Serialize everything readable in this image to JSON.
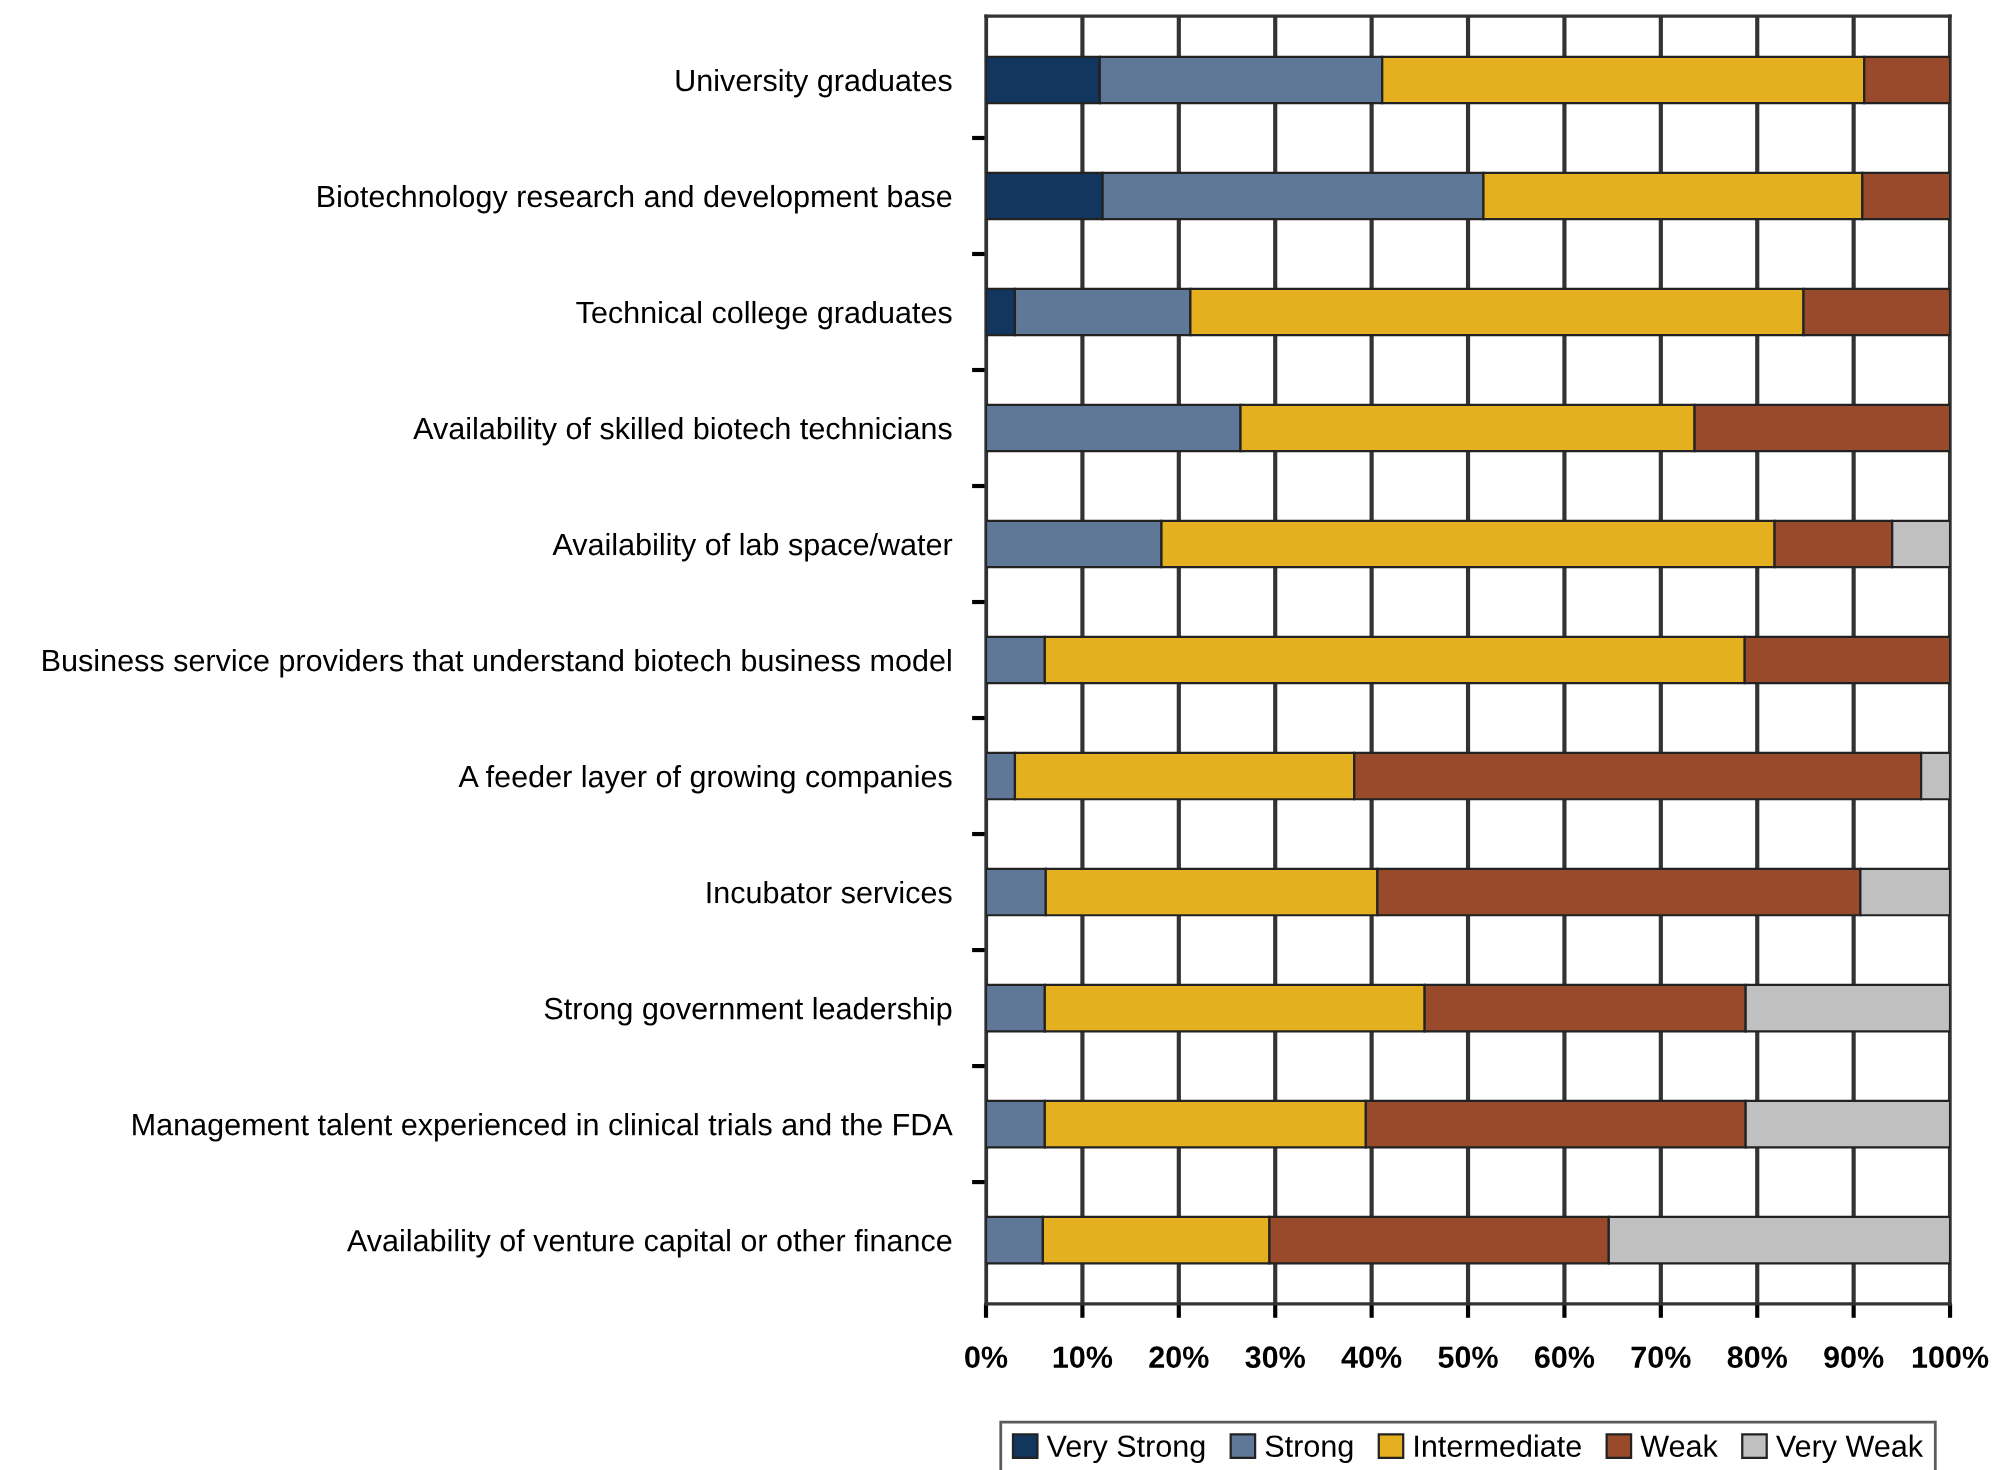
{
  "chart_data": {
    "type": "bar",
    "orientation": "horizontal",
    "stacked": true,
    "categories": [
      "University graduates",
      "Biotechnology research and development base",
      "Technical college graduates",
      "Availability of skilled biotech technicians",
      "Availability of lab space/water",
      "Business service providers that understand biotech business model",
      "A feeder layer of growing companies",
      "Incubator services",
      "Strong government leadership",
      "Management talent experienced in clinical trials and the FDA",
      "Availability of venture capital or other finance"
    ],
    "series": [
      {
        "name": "Very Strong",
        "color": "#12365e",
        "values": [
          11.8,
          12.1,
          3.0,
          0,
          0,
          0,
          0,
          0,
          0,
          0,
          0
        ]
      },
      {
        "name": "Strong",
        "color": "#607898",
        "values": [
          29.3,
          39.5,
          18.2,
          26.4,
          18.2,
          6.1,
          3.0,
          6.2,
          6.1,
          6.1,
          5.9
        ]
      },
      {
        "name": "Intermediate",
        "color": "#e5b020",
        "values": [
          50.0,
          39.3,
          63.6,
          47.1,
          63.6,
          72.6,
          35.2,
          34.4,
          39.4,
          33.3,
          23.5
        ]
      },
      {
        "name": "Weak",
        "color": "#984a2b",
        "values": [
          8.9,
          9.1,
          15.2,
          26.5,
          12.2,
          21.3,
          58.8,
          50.1,
          33.3,
          39.4,
          35.2
        ]
      },
      {
        "name": "Very Weak",
        "color": "#c0c0c0",
        "values": [
          0,
          0,
          0,
          0,
          6.0,
          0,
          3.0,
          9.3,
          21.2,
          21.2,
          35.4
        ]
      }
    ],
    "xlim": [
      0,
      100
    ],
    "xticks": [
      {
        "value": 0,
        "label": "0%"
      },
      {
        "value": 10,
        "label": "10%"
      },
      {
        "value": 20,
        "label": "20%"
      },
      {
        "value": 30,
        "label": "30%"
      },
      {
        "value": 40,
        "label": "40%"
      },
      {
        "value": 50,
        "label": "50%"
      },
      {
        "value": 60,
        "label": "60%"
      },
      {
        "value": 70,
        "label": "70%"
      },
      {
        "value": 80,
        "label": "80%"
      },
      {
        "value": 90,
        "label": "90%"
      },
      {
        "value": 100,
        "label": "100%"
      }
    ],
    "grid": "x",
    "legend": "bottom"
  }
}
